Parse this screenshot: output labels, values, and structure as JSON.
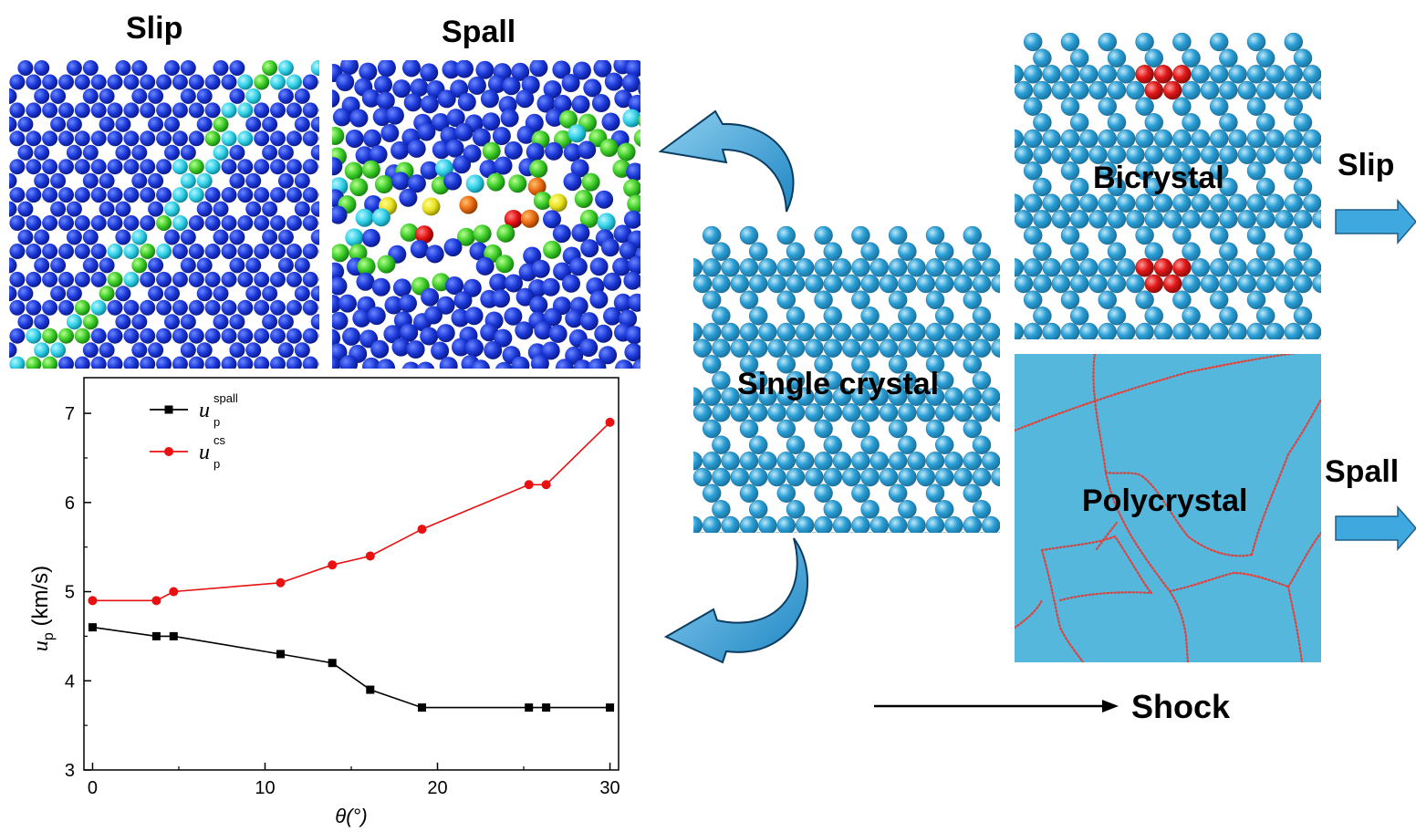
{
  "labels": {
    "slip_title": "Slip",
    "spall_title": "Spall",
    "bicrystal": "Bicrystal",
    "single_crystal": "Single crystal",
    "polycrystal": "Polycrystal",
    "slip_arrow": "Slip",
    "spall_arrow": "Spall",
    "shock": "Shock"
  },
  "colors": {
    "atom_blue": "#2a9fd6",
    "gb_red": "#e01818",
    "poly_bg": "#52b8dc",
    "arrow_fill": "#3fa9df",
    "series_spall": "#000000",
    "series_cs": "#e81010"
  },
  "chart_data": {
    "type": "line",
    "xlabel": "θ(°)",
    "ylabel": "u_p (km/s)",
    "xlim": [
      -0.5,
      30.5
    ],
    "ylim": [
      3,
      7.4
    ],
    "xticks": [
      0,
      10,
      20,
      30
    ],
    "yticks": [
      3,
      4,
      5,
      6,
      7
    ],
    "legend_position": "top-left",
    "series": [
      {
        "name": "u_p^spall",
        "label_main": "u",
        "label_sub": "p",
        "label_sup": "spall",
        "color": "#000000",
        "marker": "square",
        "x": [
          0,
          3.7,
          4.7,
          10.9,
          13.9,
          16.1,
          19.1,
          25.3,
          26.3,
          30
        ],
        "y": [
          4.6,
          4.5,
          4.5,
          4.3,
          4.2,
          3.9,
          3.7,
          3.7,
          3.7,
          3.7
        ]
      },
      {
        "name": "u_p^cs",
        "label_main": "u",
        "label_sub": "p",
        "label_sup": "cs",
        "color": "#e81010",
        "marker": "circle",
        "x": [
          0,
          3.7,
          4.7,
          10.9,
          13.9,
          16.1,
          19.1,
          25.3,
          26.3,
          30
        ],
        "y": [
          4.9,
          4.9,
          5.0,
          5.1,
          5.3,
          5.4,
          5.7,
          6.2,
          6.2,
          6.9
        ]
      }
    ]
  }
}
